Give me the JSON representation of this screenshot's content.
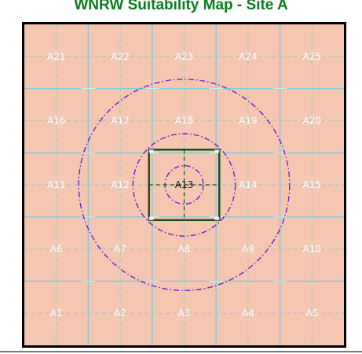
{
  "title": "WNRW Suitability Map - Site A",
  "colors": {
    "background": "#f5c7b0",
    "grid_line": "#8cc8d8",
    "ring": "#6a1fd0",
    "site_square": "#1c4f1c",
    "frame": "#000000",
    "label_text": "#ffffff",
    "center_label_text": "#1a1a1a",
    "title": "#0a7d1e"
  },
  "grid": {
    "rows": 5,
    "columns": 5,
    "cells": [
      {
        "id": "A21",
        "row": 0,
        "col": 0,
        "label": "A21"
      },
      {
        "id": "A22",
        "row": 0,
        "col": 1,
        "label": "A22"
      },
      {
        "id": "A23",
        "row": 0,
        "col": 2,
        "label": "A23"
      },
      {
        "id": "A24",
        "row": 0,
        "col": 3,
        "label": "A24"
      },
      {
        "id": "A25",
        "row": 0,
        "col": 4,
        "label": "A25"
      },
      {
        "id": "A16",
        "row": 1,
        "col": 0,
        "label": "A16"
      },
      {
        "id": "A17",
        "row": 1,
        "col": 1,
        "label": "A17"
      },
      {
        "id": "A18",
        "row": 1,
        "col": 2,
        "label": "A18"
      },
      {
        "id": "A19",
        "row": 1,
        "col": 3,
        "label": "A19"
      },
      {
        "id": "A20",
        "row": 1,
        "col": 4,
        "label": "A20"
      },
      {
        "id": "A11",
        "row": 2,
        "col": 0,
        "label": "A11"
      },
      {
        "id": "A12",
        "row": 2,
        "col": 1,
        "label": "A12"
      },
      {
        "id": "A13",
        "row": 2,
        "col": 2,
        "label": "A13"
      },
      {
        "id": "A14",
        "row": 2,
        "col": 3,
        "label": "A14"
      },
      {
        "id": "A15",
        "row": 2,
        "col": 4,
        "label": "A15"
      },
      {
        "id": "A6",
        "row": 3,
        "col": 0,
        "label": "A6"
      },
      {
        "id": "A7",
        "row": 3,
        "col": 1,
        "label": "A7"
      },
      {
        "id": "A8",
        "row": 3,
        "col": 2,
        "label": "A8"
      },
      {
        "id": "A9",
        "row": 3,
        "col": 3,
        "label": "A9"
      },
      {
        "id": "A10",
        "row": 3,
        "col": 4,
        "label": "A10"
      },
      {
        "id": "A1",
        "row": 4,
        "col": 0,
        "label": "A1"
      },
      {
        "id": "A2",
        "row": 4,
        "col": 1,
        "label": "A2"
      },
      {
        "id": "A3",
        "row": 4,
        "col": 2,
        "label": "A3"
      },
      {
        "id": "A4",
        "row": 4,
        "col": 3,
        "label": "A4"
      },
      {
        "id": "A5",
        "row": 4,
        "col": 4,
        "label": "A5"
      }
    ],
    "center_cell": "A13"
  },
  "rings": [
    {
      "id": "inner-ring",
      "radius_cells": 0.3
    },
    {
      "id": "middle-ring",
      "radius_cells": 0.8
    },
    {
      "id": "outer-ring",
      "radius_cells": 1.65
    }
  ],
  "site_square": {
    "half_size_cells": 0.55
  }
}
